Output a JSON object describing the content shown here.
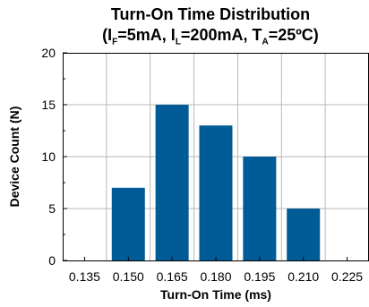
{
  "title_line1": "Turn-On Time Distribution",
  "title_line2": {
    "open": "(I",
    "sub1": "F",
    "mid1": "=5mA, I",
    "sub2": "L",
    "mid2": "=200mA, T",
    "sub3": "A",
    "end": "=25ºC)"
  },
  "colors": {
    "bar": "#005b96",
    "grid": "#b8b8b8",
    "frame": "#000000"
  },
  "chart_data": {
    "type": "bar",
    "categories": [
      "0.135",
      "0.150",
      "0.165",
      "0.180",
      "0.195",
      "0.210",
      "0.225"
    ],
    "values": [
      0,
      7,
      15,
      13,
      10,
      5,
      0
    ],
    "xlabel": "Turn-On Time (ms)",
    "ylabel": "Device Count (N)",
    "ylim": [
      0,
      20
    ],
    "yticks": [
      "0",
      "5",
      "10",
      "15",
      "20"
    ],
    "grid": true
  }
}
